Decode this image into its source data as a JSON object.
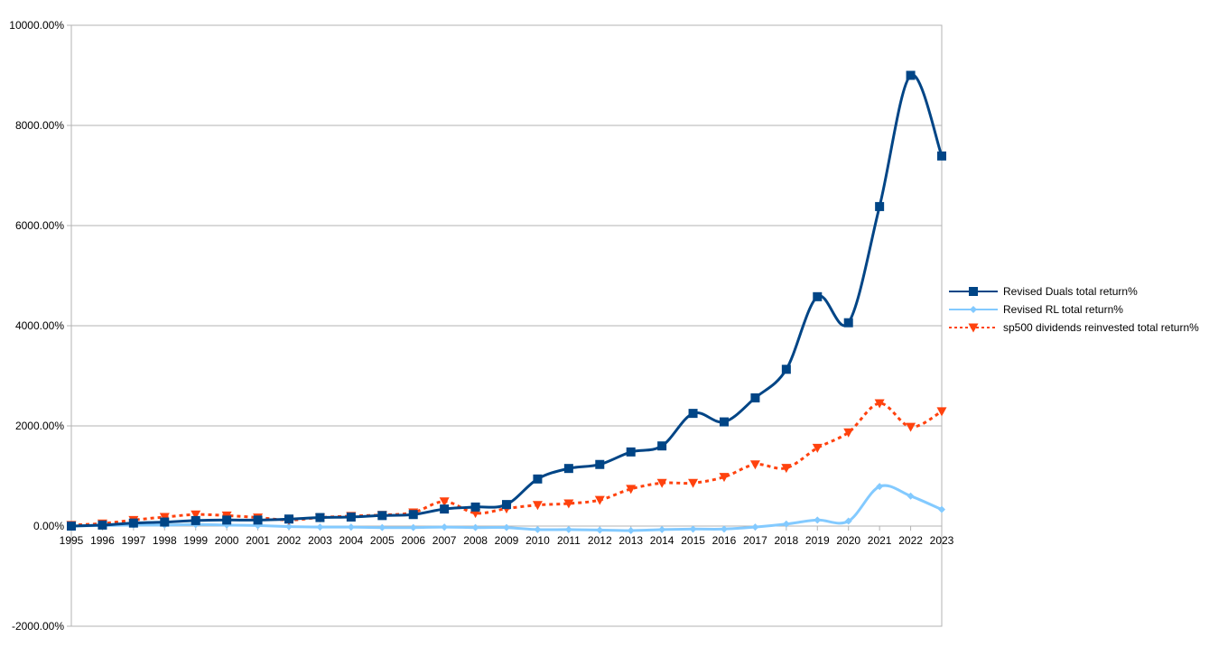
{
  "chart_data": {
    "type": "line",
    "title": "",
    "xlabel": "",
    "ylabel": "",
    "x": [
      "1995",
      "1996",
      "1997",
      "1998",
      "1999",
      "2000",
      "2001",
      "2002",
      "2003",
      "2004",
      "2005",
      "2006",
      "2007",
      "2008",
      "2009",
      "2010",
      "2011",
      "2012",
      "2013",
      "2014",
      "2015",
      "2016",
      "2017",
      "2018",
      "2019",
      "2020",
      "2021",
      "2022",
      "2023"
    ],
    "ylim": [
      -2000,
      10000
    ],
    "y_ticks": [
      "-2000.00%",
      "0.00%",
      "2000.00%",
      "4000.00%",
      "6000.00%",
      "8000.00%",
      "10000.00%"
    ],
    "grid": "horizontal",
    "legend_position": "right",
    "series": [
      {
        "name": "Revised Duals  total return%",
        "color": "#004586",
        "marker": "square",
        "dash": "solid",
        "values": [
          0,
          20,
          60,
          80,
          110,
          120,
          120,
          140,
          170,
          180,
          210,
          230,
          340,
          380,
          430,
          940,
          1150,
          1230,
          1480,
          1600,
          2250,
          2080,
          2560,
          3130,
          4580,
          4060,
          6380,
          9000,
          7390
        ]
      },
      {
        "name": "Revised RL  total return%",
        "color": "#83caff",
        "marker": "diamond",
        "dash": "solid",
        "values": [
          0,
          10,
          20,
          20,
          30,
          20,
          10,
          -10,
          -20,
          -20,
          -30,
          -30,
          -20,
          -30,
          -30,
          -70,
          -70,
          -80,
          -90,
          -70,
          -60,
          -60,
          -20,
          40,
          120,
          100,
          790,
          600,
          330
        ]
      },
      {
        "name": "sp500 dividends reinvested total return%",
        "color": "#ff420e",
        "marker": "triangle-down",
        "dash": "dotted",
        "values": [
          20,
          50,
          120,
          180,
          230,
          210,
          170,
          120,
          170,
          200,
          220,
          270,
          490,
          260,
          350,
          420,
          450,
          520,
          740,
          860,
          860,
          980,
          1230,
          1160,
          1560,
          1870,
          2450,
          1980,
          2290
        ]
      }
    ]
  }
}
